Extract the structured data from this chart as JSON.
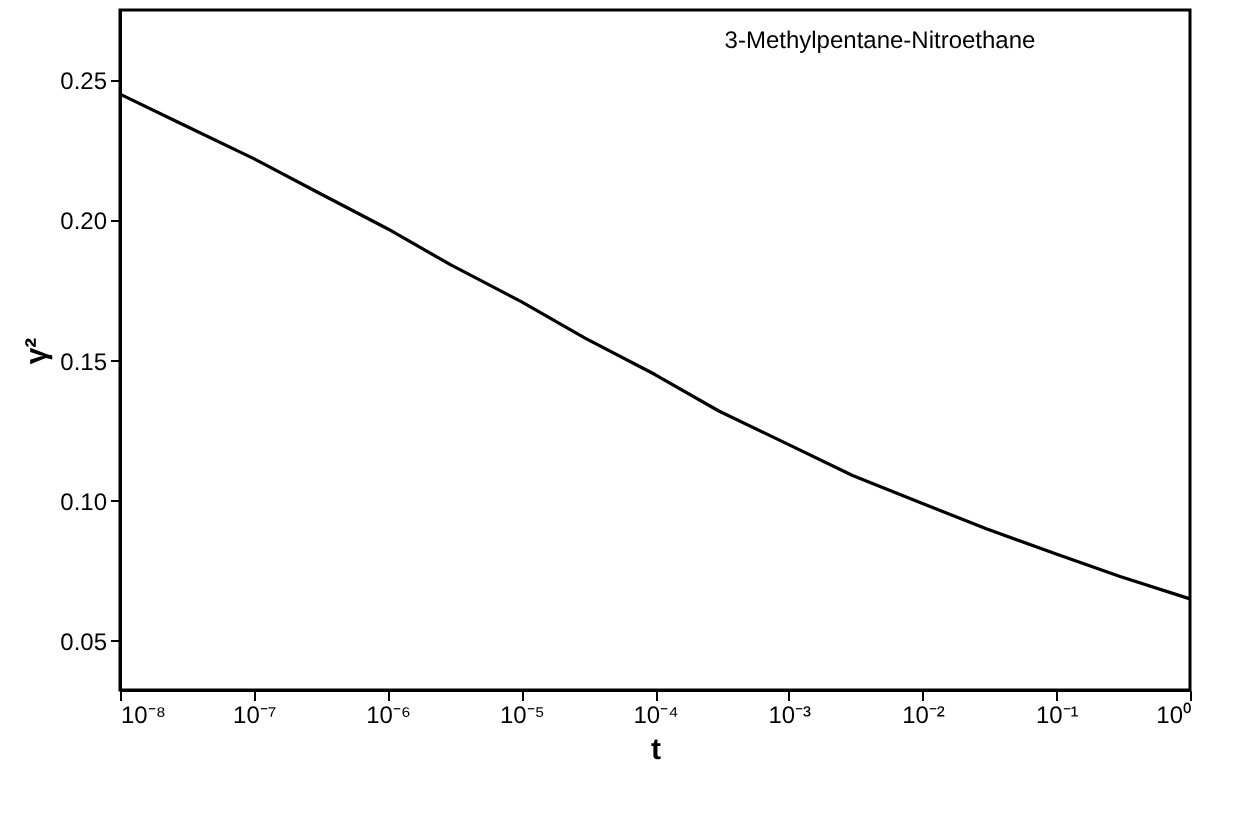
{
  "chart_data": {
    "type": "line",
    "xlabel": "t",
    "ylabel": "γ²",
    "annotations": [
      "3-Methylpentane-Nitroethane"
    ],
    "log": "x",
    "grid": false,
    "marker": "none",
    "line_style": "solid",
    "xlim": [
      1e-08,
      1
    ],
    "ylim": [
      0.0325,
      0.275
    ],
    "xticks": [
      {
        "value": 1e-08,
        "label": "10⁻⁸"
      },
      {
        "value": 1e-07,
        "label": "10⁻⁷"
      },
      {
        "value": 1e-06,
        "label": "10⁻⁶"
      },
      {
        "value": 1e-05,
        "label": "10⁻⁵"
      },
      {
        "value": 0.0001,
        "label": "10⁻⁴"
      },
      {
        "value": 0.001,
        "label": "10⁻³"
      },
      {
        "value": 0.01,
        "label": "10⁻²"
      },
      {
        "value": 0.1,
        "label": "10⁻¹"
      },
      {
        "value": 1,
        "label": "10⁰"
      }
    ],
    "yticks": [
      0.05,
      {
        "value": 0.1,
        "label": "0.10"
      },
      0.15,
      {
        "value": 0.2,
        "label": "0.20"
      },
      0.25
    ],
    "series": [
      {
        "color": "#000000",
        "x": [
          1e-08,
          3e-08,
          1e-07,
          3e-07,
          1e-06,
          3e-06,
          1e-05,
          3e-05,
          0.0001,
          0.0003,
          0.001,
          0.003,
          0.01,
          0.03,
          0.1,
          0.3,
          1
        ],
        "values": [
          0.245,
          0.234,
          0.222,
          0.21,
          0.197,
          0.184,
          0.171,
          0.158,
          0.145,
          0.132,
          0.12,
          0.109,
          0.099,
          0.09,
          0.081,
          0.073,
          0.065
        ]
      }
    ]
  }
}
